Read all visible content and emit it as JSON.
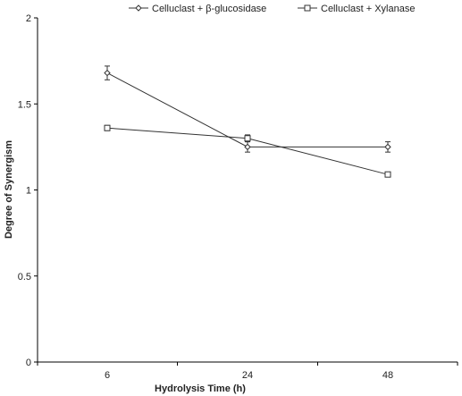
{
  "chart_data": {
    "type": "line",
    "title": "",
    "xlabel": "Hydrolysis Time (h)",
    "ylabel": "Degree of Synergism",
    "categories": [
      "6",
      "24",
      "48"
    ],
    "ylim": [
      0,
      2
    ],
    "yticks": [
      "0",
      "0.5",
      "1",
      "1.5",
      "2"
    ],
    "grid": false,
    "legend_position": "top",
    "series": [
      {
        "name": "Celluclast + β-glucosidase",
        "marker": "diamond",
        "color": "#333333",
        "values": [
          1.68,
          1.25,
          1.25
        ],
        "errors": [
          0.04,
          0.03,
          0.03
        ]
      },
      {
        "name": "Celluclast + Xylanase",
        "marker": "square",
        "color": "#333333",
        "values": [
          1.36,
          1.3,
          1.09
        ],
        "errors": [
          0.015,
          0.02,
          0.01
        ]
      }
    ]
  }
}
